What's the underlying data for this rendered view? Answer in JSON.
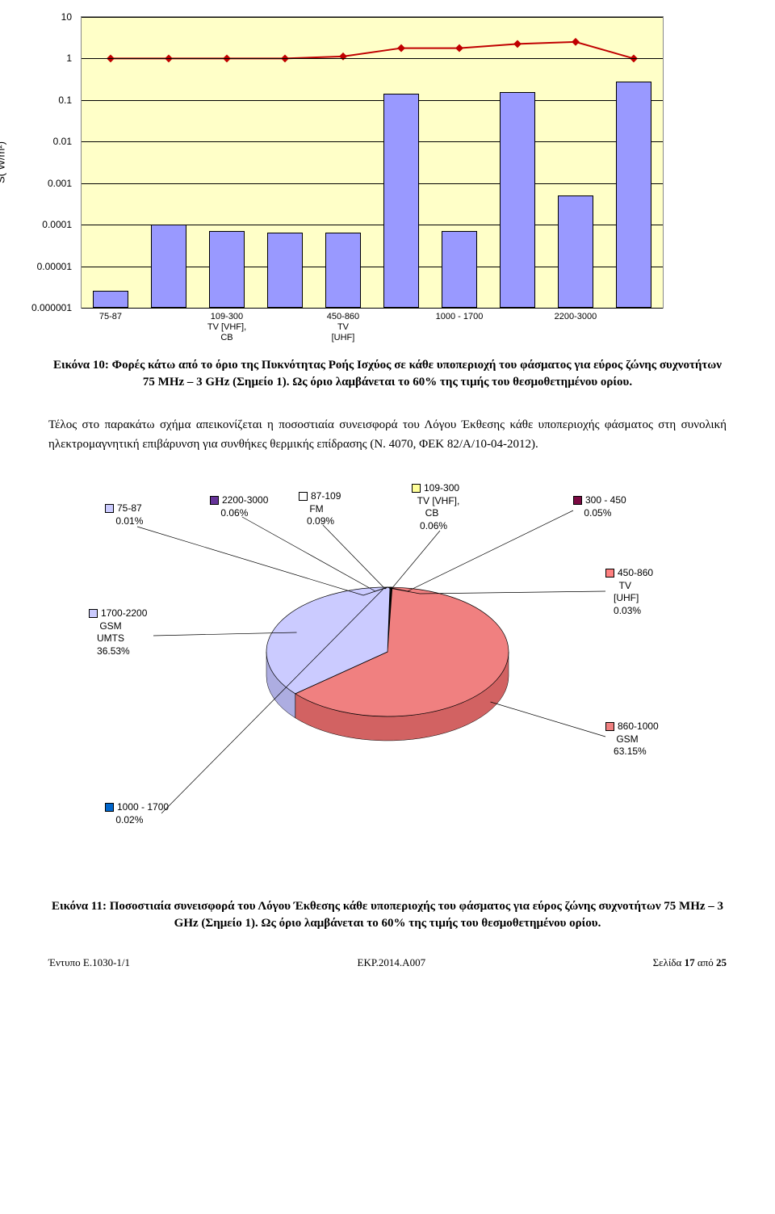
{
  "bar_chart": {
    "type": "combo-bar-line-logy",
    "y_label": "S( W/m²)",
    "y_ticks": [
      "10",
      "1",
      "0.1",
      "0.01",
      "0.001",
      "0.0001",
      "0.00001",
      "0.000001"
    ],
    "y_exp_range": [
      -6,
      1
    ],
    "background_color": "#ffffc8",
    "bar_color": "#9999ff",
    "bar_border": "#000000",
    "line_color": "#c00000",
    "categories": [
      "75-87",
      "",
      "109-300\nTV [VHF],\nCB",
      "",
      "450-860\nTV\n[UHF]",
      "",
      "1000 - 1700",
      "",
      "2200-3000",
      ""
    ],
    "bar_values_log10": [
      -5.6,
      -4.0,
      -4.15,
      -4.2,
      -4.2,
      -0.85,
      -4.15,
      -0.8,
      -3.3,
      -0.55
    ],
    "line_values_log10": [
      0.0,
      0.0,
      0.0,
      0.0,
      0.05,
      0.25,
      0.25,
      0.35,
      0.4,
      0.0
    ]
  },
  "caption1": "Εικόνα 10: Φορές κάτω από το όριο της Πυκνότητας Ροής Ισχύος σε κάθε υποπεριοχή του φάσματος για εύρος ζώνης συχνοτήτων 75 MHz – 3 GHz (Σημείο 1). Ως όριο λαμβάνεται το 60% της τιμής του θεσμοθετημένου ορίου.",
  "paragraph": "Τέλος στο παρακάτω σχήμα απεικονίζεται η ποσοστιαία συνεισφορά του Λόγου Έκθεσης κάθε υποπεριοχής φάσματος στη συνολική ηλεκτρομαγνητική επιβάρυνση για συνθήκες θερμικής επίδρασης (Ν. 4070, ΦΕΚ 82/Α/10-04-2012).",
  "pie": {
    "type": "pie-3d",
    "slices": [
      {
        "label": "75-87",
        "value": "0.01%",
        "color": "#cbcbff"
      },
      {
        "label": "2200-3000",
        "value": "0.06%",
        "color": "#663399"
      },
      {
        "label": "87-109 FM",
        "value": "0.09%",
        "color": "#ffffff"
      },
      {
        "label": "109-300 TV [VHF], CB",
        "value": "0.06%",
        "color": "#ffff99"
      },
      {
        "label": "300 - 450",
        "value": "0.05%",
        "color": "#7b0a42"
      },
      {
        "label": "450-860 TV [UHF]",
        "value": "0.03%",
        "color": "#ff8080"
      },
      {
        "label": "860-1000 GSM",
        "value": "63.15%",
        "color": "#f08080"
      },
      {
        "label": "1000 - 1700",
        "value": "0.02%",
        "color": "#0066cc"
      },
      {
        "label": "1700-2200 GSM UMTS",
        "value": "36.53%",
        "color": "#cbcbff"
      }
    ]
  },
  "caption2": "Εικόνα 11: Ποσοστιαία συνεισφορά του Λόγου Έκθεσης κάθε υποπεριοχής του φάσματος για εύρος ζώνης συχνοτήτων 75 MHz – 3 GHz (Σημείο 1). Ως όριο λαμβάνεται το 60% της τιμής του θεσμοθετημένου ορίου.",
  "footer": {
    "left": "Έντυπο Ε.1030-1/1",
    "center": "ΕΚΡ.2014.Α007",
    "right": "Σελίδα 17 από 25"
  }
}
